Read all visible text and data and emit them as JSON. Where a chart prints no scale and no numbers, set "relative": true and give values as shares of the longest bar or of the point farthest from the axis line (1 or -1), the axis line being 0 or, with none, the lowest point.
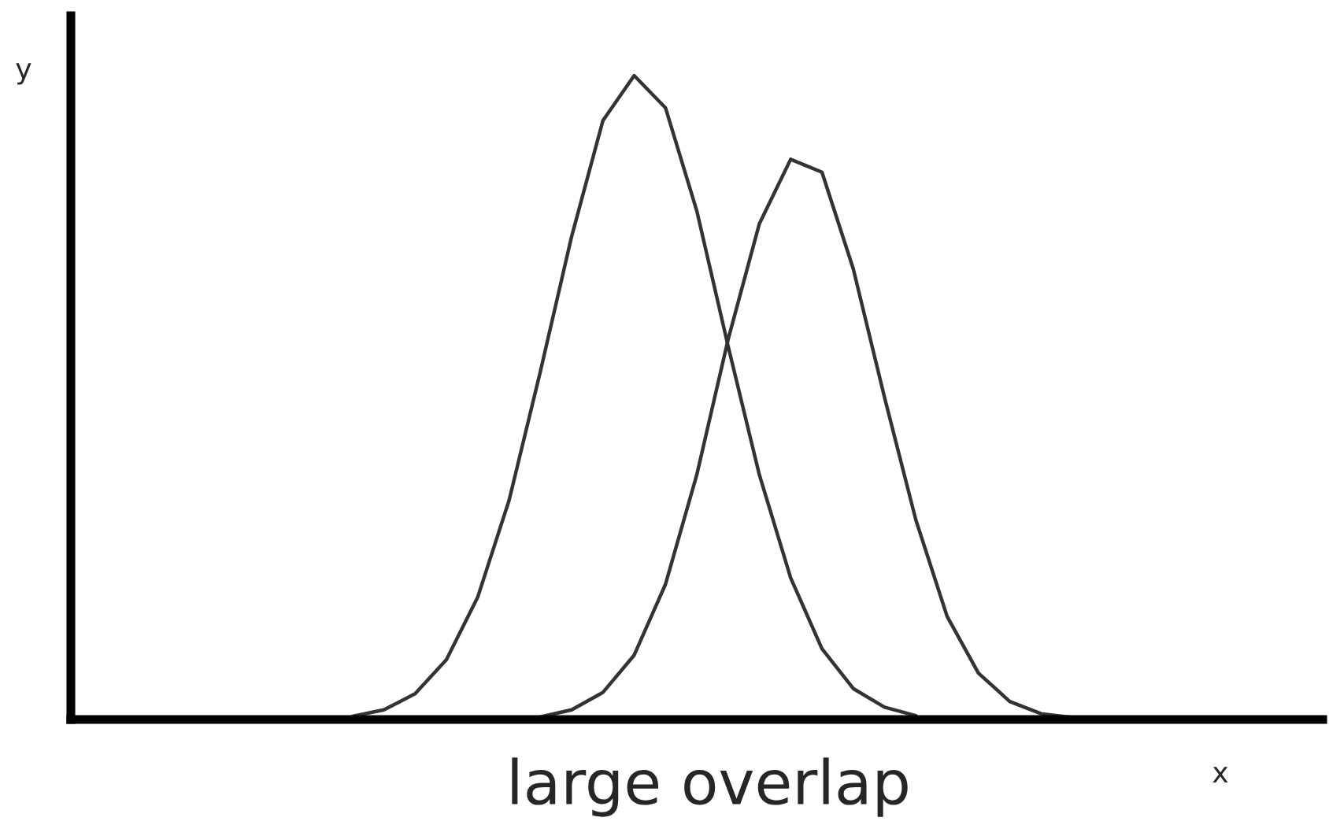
{
  "chart_data": {
    "type": "line",
    "title": "large overlap",
    "xlabel": "x",
    "ylabel": "y",
    "relative": true,
    "grid": false,
    "legend": false,
    "categories": [
      null,
      null,
      null,
      null,
      null,
      null,
      null,
      null,
      null,
      null,
      null,
      null,
      null,
      null,
      null,
      null,
      null,
      null,
      null,
      null,
      null,
      null,
      null,
      null,
      null,
      null,
      null,
      null,
      null,
      null,
      null,
      null,
      null,
      null,
      null,
      null,
      null,
      null,
      null,
      null,
      null
    ],
    "series": [
      {
        "color": "#333333",
        "values": [
          null,
          null,
          null,
          null,
          null,
          null,
          null,
          null,
          null,
          0.005,
          0.015,
          0.04,
          0.093,
          0.19,
          0.34,
          0.54,
          0.75,
          0.93,
          1.0,
          0.95,
          0.79,
          0.58,
          0.38,
          0.22,
          0.11,
          0.048,
          0.019,
          0.006,
          null,
          null,
          null,
          null,
          null,
          null,
          null,
          null,
          null,
          null,
          null,
          null,
          null
        ]
      },
      {
        "color": "#333333",
        "values": [
          null,
          null,
          null,
          null,
          null,
          null,
          null,
          null,
          null,
          null,
          null,
          null,
          null,
          null,
          null,
          0.004,
          0.015,
          0.042,
          0.1,
          0.21,
          0.38,
          0.59,
          0.77,
          0.87,
          0.85,
          0.7,
          0.5,
          0.31,
          0.16,
          0.072,
          0.028,
          0.009,
          0.003,
          null,
          null,
          null,
          null,
          null,
          null,
          null,
          null
        ]
      }
    ]
  }
}
